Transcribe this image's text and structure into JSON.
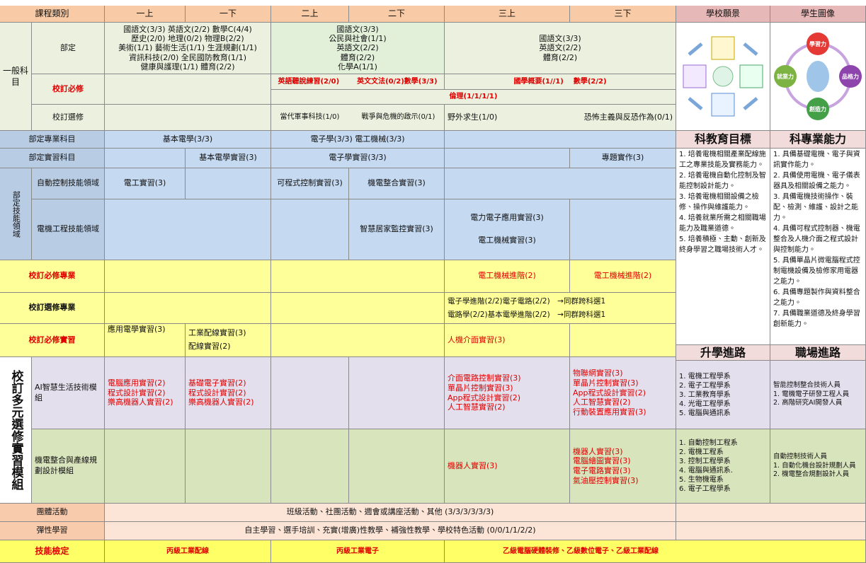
{
  "header": {
    "category": "課程類別",
    "semesters": [
      "一上",
      "一下",
      "二上",
      "二下",
      "三上",
      "三下"
    ],
    "vision": "學校願景",
    "portrait": "學生圖像"
  },
  "general": {
    "label": "一般科目",
    "required": {
      "label": "部定",
      "grade1": [
        "國語文(3/3) 英語文(2/2) 數學C(4/4)",
        "歷史(2/0) 地理(0/2) 物理B(2/2)",
        "美術(1/1) 藝術生活(1/1) 生涯規劃(1/1)",
        "資訊科技(2/0) 全民國防教育(1/1)",
        "健康與護理(1/1) 體育(2/2)"
      ],
      "grade2": [
        "國語文(3/3)",
        "公民與社會(1/1)",
        "英語文(2/2)",
        "體育(2/2)",
        "化學A(1/1)"
      ],
      "grade3": [
        "國語文(3/3)",
        "英語文(2/2)",
        "體育(2/2)"
      ]
    },
    "school_required": {
      "label": "校訂必修",
      "grade2": [
        "英語聽說練習(2/0)",
        "英文文法(0/2)數學(3/3)"
      ],
      "grade3": [
        "國學概要(1//1)",
        "數學(2/2)"
      ],
      "ethics": "倫理(1/1/1/1)"
    },
    "school_elective": {
      "label": "校訂選修",
      "grade2": [
        "當代軍事科技(1/0)",
        "戰爭與危機的啟示(0/1)"
      ],
      "grade3": [
        "野外求生(1/0)",
        "恐怖主義與反恐作為(0/1)"
      ]
    }
  },
  "professional": {
    "label": "部定專業科目",
    "grade1": "基本電學(3/3)",
    "grade2": "電子學(3/3) 電工機械(3/3)"
  },
  "practice": {
    "label": "部定實習科目",
    "grade1_second": "基本電學實習(3)",
    "grade2": "電子學實習(3/3)",
    "grade3_second": "專題實作(3)"
  },
  "skill_domain": {
    "label": "部定技能領域",
    "automation": {
      "label": "自動控制技能領域",
      "grade1_first": "電工實習(3)",
      "grade2_first": "可程式控制實習(3)",
      "grade2_second": "機電整合實習(3)"
    },
    "electrical": {
      "label": "電機工程技能領域",
      "grade2_second": "智慧居家監控實習(3)",
      "grade3_first": [
        "電力電子應用實習(3)",
        "電工機械實習(3)"
      ]
    }
  },
  "school_professional_required": {
    "label": "校訂必修專業",
    "grade3_first": "電工機械進階(2)",
    "grade3_second": "電工機械進階(2)"
  },
  "school_professional_elective": {
    "label": "校訂選修專業",
    "grade3": [
      "電子學進階(2/2)電子電路(2/2)　→同群跨科選1",
      "電路學(2/2)基本電學進階(2/2)　→同群跨科選1"
    ]
  },
  "school_practice_required": {
    "label": "校訂必修實習",
    "grade1_first": "應用電學實習(3)",
    "grade1_second": [
      "工業配線實習(3)",
      "配線實習(2)"
    ],
    "grade3_first": "人機介面實習(3)"
  },
  "modules": {
    "label": "校訂多元選修實習模組",
    "ai": {
      "label": "AI智慧生活技術模組",
      "grade1_first": [
        "電腦應用實習(2)",
        "程式設計實習(2)",
        "樂高機器人實習(2)"
      ],
      "grade1_second": [
        "基礎電子實習(2)",
        "程式設計實習(2)",
        "樂高機器人實習(2)"
      ],
      "grade3_first": [
        "介面電路控制實習(3)",
        "單晶片控制實習(3)",
        "App程式設計實習(2)",
        "人工智慧實習(2)"
      ],
      "grade3_second": [
        "物聯網實習(3)",
        "單晶片控制實習(3)",
        "App程式設計實習(2)",
        "人工智慧實習(2)",
        "行動裝置應用實習(3)"
      ]
    },
    "mech": {
      "label": "機電整合與產線規劃設計模組",
      "grade3_first": "機器人實習(3)",
      "grade3_second": [
        "機器人實習(3)",
        "電腦繪圖實習(3)",
        "電子電路實習(3)",
        "氣油壓控制實習(3)"
      ]
    }
  },
  "group_activity": {
    "label": "團體活動",
    "content": "班級活動、社團活動、週會或講座活動、其他 (3/3/3/3/3/3)"
  },
  "flexible": {
    "label": "彈性學習",
    "content": "自主學習、選手培訓、充實(增廣)性教學、補強性教學、學校特色活動 (0/0/1/1/2/2)"
  },
  "certification": {
    "label": "技能檢定",
    "grade1": "丙級工業配線",
    "grade2": "丙級工業電子",
    "grade3": "乙級電腦硬體裝修、乙級數位電子、乙級工業配線"
  },
  "sidebar": {
    "portrait_traits": [
      "學習力",
      "品格力",
      "創造力",
      "就業力"
    ],
    "goals_title": "科教育目標",
    "goals": [
      "1. 培養電機相關產業配線施工之專業技能及實務能力。",
      "2. 培養電機自動化控制及智能控制設計能力。",
      "3. 培養電機相關設備之檢修、操作與維護能力。",
      "4. 培養就業所需之相關職場能力及職業道德。",
      "5. 培養積極、主動、創新及終身學習之職場技術人才。"
    ],
    "abilities_title": "科專業能力",
    "abilities": [
      "1. 具備基礎電機、電子與資訊實作能力。",
      "2. 具備使用電機、電子儀表器具及相關設備之能力。",
      "3. 具備電機技術操作、裝配、檢測、維護、設計之能力。",
      "4. 具備可程式控制器、機電整合及人機介面之程式設計與控制能力。",
      "5. 具備單晶片微電腦程式控制電機設備及檢修家用電器之能力。",
      "6. 具備專題製作與資料整合之能力。",
      "7. 具備職業道德及終身學習創新能力。"
    ],
    "study_title": "升學進路",
    "career_title": "職場進路",
    "ai_study": [
      "1. 電機工程學系",
      "2. 電子工程學系",
      "3. 工業教育學系",
      "4. 光電工程學系",
      "5. 電腦與通訊系"
    ],
    "ai_career": [
      "智能控制整合技術人員",
      "1. 電機電子研發工程人員",
      "2. 高階研究AI開發人員"
    ],
    "mech_study": [
      "1. 自動控制工程系",
      "2. 電機工程系",
      "3. 控制工程學系",
      "4. 電腦與通訊系.",
      "5. 生物機電系",
      "6. 電子工程學系"
    ],
    "mech_career": [
      "自動控制技術人員",
      "1. 自動化機台設計規劃人員",
      "2. 機電整合規劃設計人員"
    ]
  }
}
